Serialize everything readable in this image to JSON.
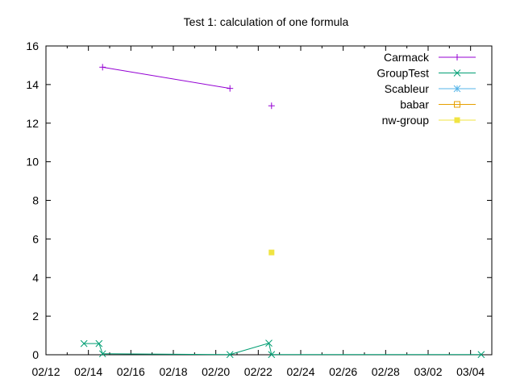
{
  "chart_data": {
    "type": "line",
    "title": "Test 1: calculation of one formula",
    "xlabel": "",
    "ylabel": "",
    "x_axis_type": "date",
    "xlim": [
      "2024-02-12",
      "2024-03-04"
    ],
    "ylim": [
      0,
      16
    ],
    "x_ticks": [
      "02/12",
      "02/14",
      "02/16",
      "02/18",
      "02/20",
      "02/22",
      "02/24",
      "02/26",
      "02/28",
      "03/02",
      "03/04"
    ],
    "y_ticks": [
      "0",
      "2",
      "4",
      "6",
      "8",
      "10",
      "12",
      "14",
      "16"
    ],
    "grid": false,
    "legend_position": "top-right",
    "series": [
      {
        "name": "Carmack",
        "color": "#9400d3",
        "marker": "plus",
        "points": [
          {
            "x": "2024-02-14T16:00",
            "y": 14.9
          },
          {
            "x": "2024-02-20T16:00",
            "y": 13.8
          },
          {
            "x": "2024-02-22T15:00",
            "y": 12.9
          }
        ]
      },
      {
        "name": "GroupTest",
        "color": "#009e73",
        "marker": "cross",
        "points": [
          {
            "x": "2024-02-13T19:00",
            "y": 0.58
          },
          {
            "x": "2024-02-14T12:00",
            "y": 0.58
          },
          {
            "x": "2024-02-14T16:00",
            "y": 0.05
          },
          {
            "x": "2024-02-20T16:00",
            "y": 0.01
          },
          {
            "x": "2024-02-22T12:00",
            "y": 0.6
          },
          {
            "x": "2024-02-22T15:00",
            "y": 0.01
          },
          {
            "x": "2024-03-03T12:00",
            "y": 0.01
          }
        ]
      },
      {
        "name": "Scableur",
        "color": "#56b4e9",
        "marker": "star",
        "points": []
      },
      {
        "name": "babar",
        "color": "#e69f00",
        "marker": "open-square",
        "points": []
      },
      {
        "name": "nw-group",
        "color": "#f0e442",
        "marker": "filled-square",
        "points": [
          {
            "x": "2024-02-22T15:00",
            "y": 5.3
          }
        ]
      }
    ]
  }
}
